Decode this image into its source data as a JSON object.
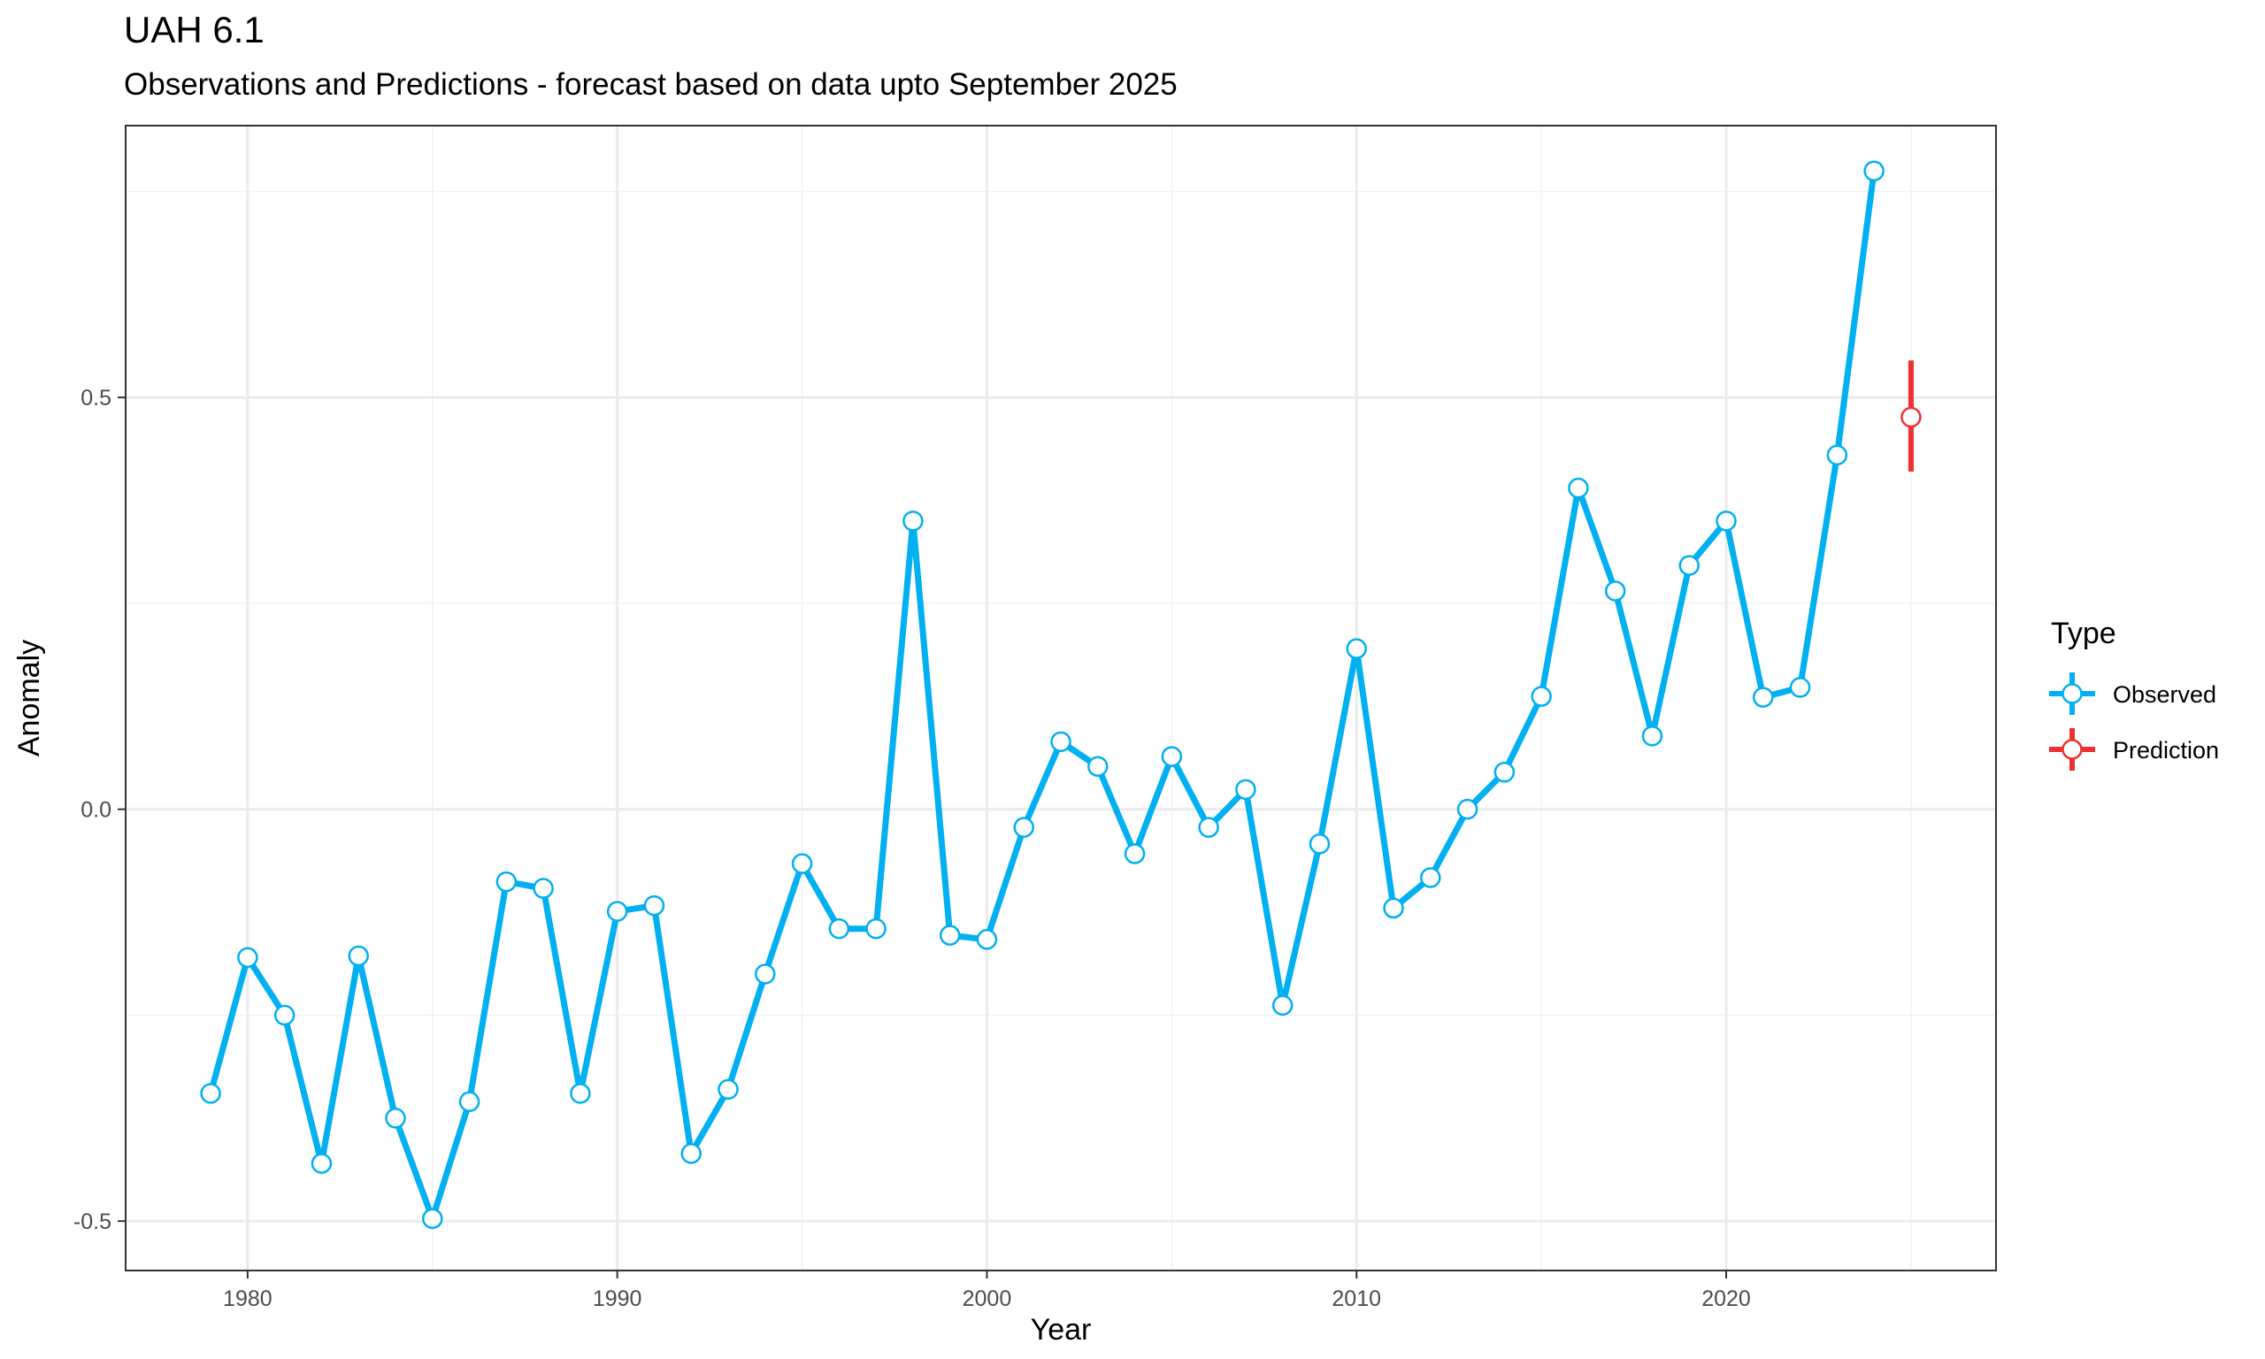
{
  "chart_data": {
    "type": "line",
    "title": "UAH 6.1",
    "subtitle": "Observations and Predictions - forecast based on data upto  September 2025",
    "xlabel": "Year",
    "ylabel": "Anomaly",
    "xlim": [
      1976.7,
      2027.3
    ],
    "ylim": [
      -0.56,
      0.83
    ],
    "x_ticks": [
      1980,
      1990,
      2000,
      2010,
      2020
    ],
    "y_ticks": [
      -0.5,
      0.0,
      0.5
    ],
    "y_tick_labels": [
      "-0.5",
      "0.0",
      "0.5"
    ],
    "grid": true,
    "legend": {
      "title": "Type",
      "position": "right",
      "entries": [
        "Observed",
        "Prediction"
      ]
    },
    "colors": {
      "Observed": "#00b0f0",
      "Prediction": "#f03030"
    },
    "series": [
      {
        "name": "Observed",
        "x": [
          1979,
          1980,
          1981,
          1982,
          1983,
          1984,
          1985,
          1986,
          1987,
          1988,
          1989,
          1990,
          1991,
          1992,
          1993,
          1994,
          1995,
          1996,
          1997,
          1998,
          1999,
          2000,
          2001,
          2002,
          2003,
          2004,
          2005,
          2006,
          2007,
          2008,
          2009,
          2010,
          2011,
          2012,
          2013,
          2014,
          2015,
          2016,
          2017,
          2018,
          2019,
          2020,
          2021,
          2022,
          2023,
          2024
        ],
        "y": [
          -0.345,
          -0.18,
          -0.25,
          -0.43,
          -0.178,
          -0.375,
          -0.497,
          -0.355,
          -0.088,
          -0.096,
          -0.345,
          -0.124,
          -0.117,
          -0.418,
          -0.34,
          -0.2,
          -0.066,
          -0.145,
          -0.145,
          0.35,
          -0.153,
          -0.158,
          -0.022,
          0.082,
          0.052,
          -0.054,
          0.064,
          -0.022,
          0.024,
          -0.238,
          -0.042,
          0.195,
          -0.12,
          -0.083,
          0.0,
          0.045,
          0.137,
          0.39,
          0.265,
          0.089,
          0.296,
          0.35,
          0.136,
          0.148,
          0.43,
          0.775
        ]
      },
      {
        "name": "Prediction",
        "x": [
          2025
        ],
        "y": [
          0.476
        ],
        "lower": [
          0.41
        ],
        "upper": [
          0.545
        ]
      }
    ]
  }
}
